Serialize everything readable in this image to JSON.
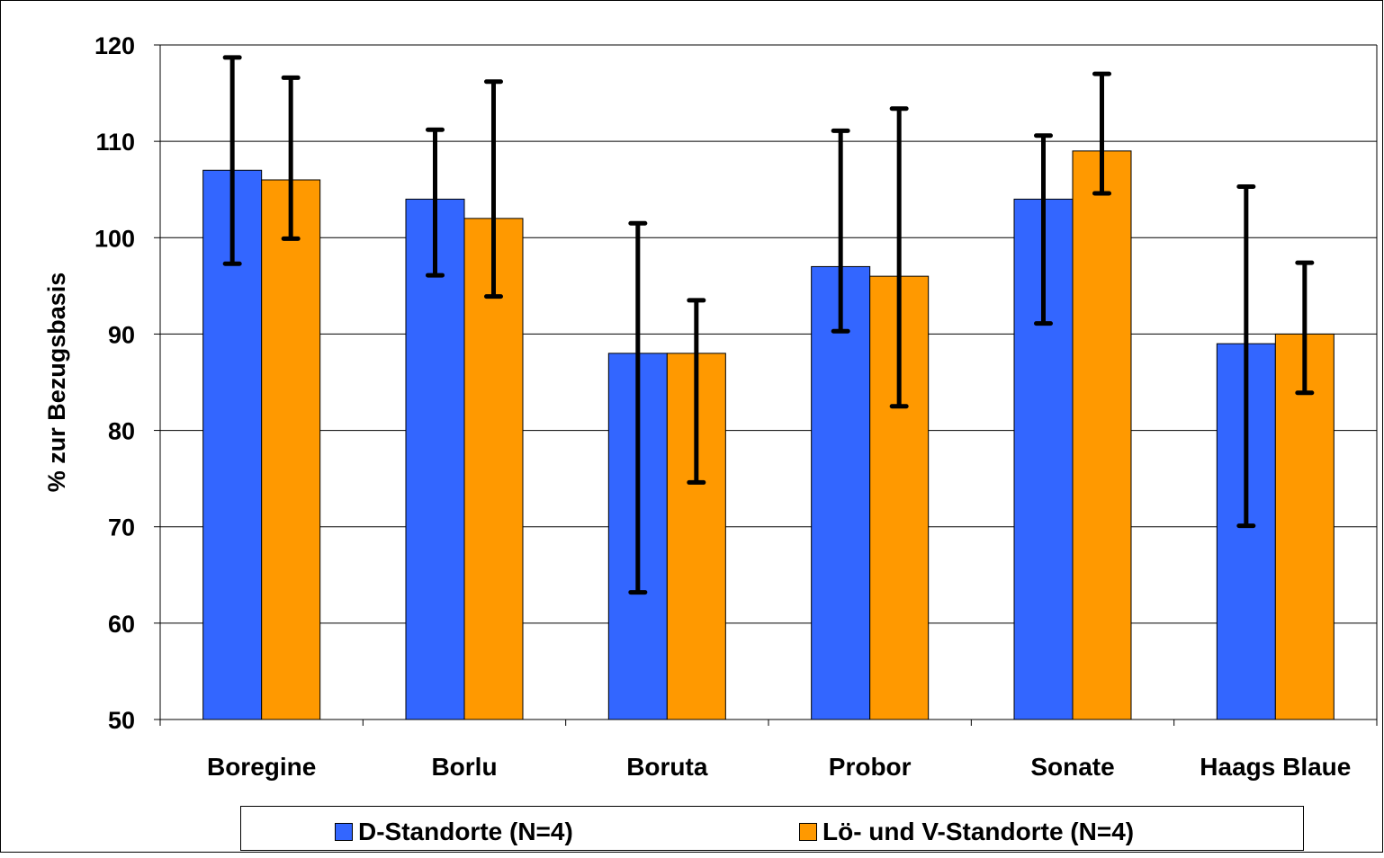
{
  "chart_data": {
    "type": "bar",
    "title": "",
    "xlabel": "",
    "ylabel": "% zur Bezugsbasis",
    "ylim": [
      50,
      120
    ],
    "yticks": [
      50,
      60,
      70,
      80,
      90,
      100,
      110,
      120
    ],
    "grid": true,
    "legend_position": "bottom",
    "categories": [
      "Boregine",
      "Borlu",
      "Boruta",
      "Probor",
      "Sonate",
      "Haags Blaue"
    ],
    "series": [
      {
        "name": "D-Standorte (N=4)",
        "color": "#3366ff",
        "values": [
          107,
          104,
          88,
          97,
          104,
          89
        ],
        "error_low": [
          97.3,
          96.1,
          63.2,
          90.3,
          91.1,
          70.1
        ],
        "error_high": [
          118.7,
          111.2,
          101.5,
          111.1,
          110.6,
          105.3
        ]
      },
      {
        "name": "Lö- und V-Standorte (N=4)",
        "color": "#ff9900",
        "values": [
          106,
          102,
          88,
          96,
          109,
          90
        ],
        "error_low": [
          99.9,
          93.9,
          74.6,
          82.5,
          104.6,
          83.9
        ],
        "error_high": [
          116.6,
          116.2,
          93.5,
          113.4,
          117.0,
          97.4
        ]
      }
    ]
  }
}
